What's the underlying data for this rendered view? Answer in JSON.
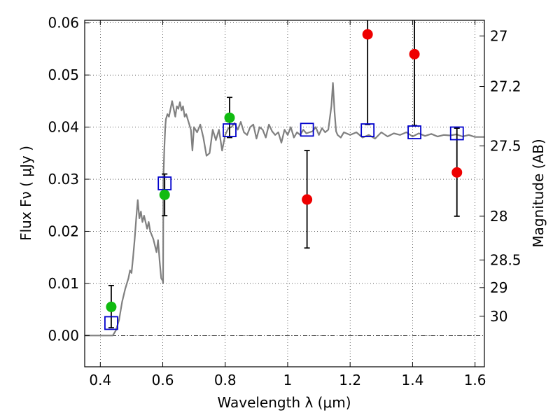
{
  "chart_data": {
    "type": "scatter",
    "xlabel": "Wavelength  λ (μm)",
    "ylabel_left": "Flux  Fν  ( μJy )",
    "ylabel_right": "Magnitude (AB)",
    "xlim": [
      0.35,
      1.63
    ],
    "ylim": [
      -0.006,
      0.0605
    ],
    "grid": true,
    "x_ticks": [
      0.4,
      0.6,
      0.8,
      1.0,
      1.2,
      1.4,
      1.6
    ],
    "x_tick_labels": [
      "0.4",
      "0.6",
      "0.8",
      "1",
      "1.2",
      "1.4",
      "1.6"
    ],
    "y_ticks": [
      0.0,
      0.01,
      0.02,
      0.03,
      0.04,
      0.05,
      0.06
    ],
    "y_tick_labels": [
      "0.00",
      "0.01",
      "0.02",
      "0.03",
      "0.04",
      "0.05",
      "0.06"
    ],
    "right_ticks": [
      {
        "label": "27",
        "flux": 0.0575
      },
      {
        "label": "27.2",
        "flux": 0.0478
      },
      {
        "label": "27.5",
        "flux": 0.0364
      },
      {
        "label": "28",
        "flux": 0.0229
      },
      {
        "label": "28.5",
        "flux": 0.0145
      },
      {
        "label": "29",
        "flux": 0.0092
      },
      {
        "label": "30",
        "flux": 0.0037
      }
    ],
    "series": [
      {
        "marker": "square-open",
        "color": "#0000cc",
        "points": [
          {
            "x": 0.435,
            "y": 0.0024
          },
          {
            "x": 0.606,
            "y": 0.0292
          },
          {
            "x": 0.814,
            "y": 0.0394
          },
          {
            "x": 1.062,
            "y": 0.0395
          },
          {
            "x": 1.256,
            "y": 0.0394
          },
          {
            "x": 1.406,
            "y": 0.039
          },
          {
            "x": 1.542,
            "y": 0.0388
          }
        ]
      },
      {
        "marker": "circle",
        "color": "#11bb11",
        "points": [
          {
            "x": 0.435,
            "y": 0.0055,
            "lo": 0.0015,
            "hi": 0.0096
          },
          {
            "x": 0.606,
            "y": 0.027,
            "lo": 0.023,
            "hi": 0.031
          },
          {
            "x": 0.814,
            "y": 0.0418,
            "lo": 0.038,
            "hi": 0.0457
          }
        ]
      },
      {
        "marker": "circle",
        "color": "#ee0000",
        "points": [
          {
            "x": 1.062,
            "y": 0.0261,
            "lo": 0.0168,
            "hi": 0.0355
          },
          {
            "x": 1.256,
            "y": 0.0578,
            "lo": 0.0405,
            "hi": 0.0615
          },
          {
            "x": 1.406,
            "y": 0.054,
            "lo": 0.0403,
            "hi": 0.0615
          },
          {
            "x": 1.542,
            "y": 0.0313,
            "lo": 0.0229,
            "hi": 0.0398
          }
        ]
      }
    ],
    "spectrum": {
      "color": "#808080",
      "x": [
        0.35,
        0.4,
        0.44,
        0.45,
        0.46,
        0.47,
        0.48,
        0.49,
        0.495,
        0.5,
        0.505,
        0.51,
        0.515,
        0.52,
        0.525,
        0.53,
        0.535,
        0.54,
        0.55,
        0.555,
        0.56,
        0.57,
        0.58,
        0.585,
        0.59,
        0.595,
        0.6,
        0.601,
        0.602,
        0.605,
        0.608,
        0.61,
        0.615,
        0.62,
        0.63,
        0.64,
        0.645,
        0.65,
        0.655,
        0.66,
        0.665,
        0.67,
        0.675,
        0.68,
        0.69,
        0.695,
        0.7,
        0.71,
        0.72,
        0.73,
        0.74,
        0.75,
        0.76,
        0.77,
        0.78,
        0.79,
        0.8,
        0.81,
        0.82,
        0.83,
        0.84,
        0.85,
        0.86,
        0.87,
        0.88,
        0.89,
        0.9,
        0.91,
        0.92,
        0.93,
        0.94,
        0.95,
        0.96,
        0.97,
        0.98,
        0.99,
        1.0,
        1.01,
        1.02,
        1.03,
        1.04,
        1.05,
        1.06,
        1.07,
        1.08,
        1.09,
        1.1,
        1.11,
        1.12,
        1.13,
        1.14,
        1.145,
        1.15,
        1.155,
        1.16,
        1.17,
        1.18,
        1.2,
        1.22,
        1.24,
        1.26,
        1.28,
        1.3,
        1.32,
        1.34,
        1.36,
        1.38,
        1.4,
        1.42,
        1.44,
        1.46,
        1.48,
        1.5,
        1.52,
        1.54,
        1.56,
        1.58,
        1.6,
        1.63
      ],
      "y": [
        0.0,
        0.0,
        0.0,
        0.001,
        0.003,
        0.0065,
        0.009,
        0.011,
        0.0125,
        0.012,
        0.015,
        0.0185,
        0.0225,
        0.026,
        0.0225,
        0.0238,
        0.0218,
        0.023,
        0.0205,
        0.0218,
        0.02,
        0.0185,
        0.016,
        0.0183,
        0.0142,
        0.011,
        0.0105,
        0.01,
        0.03,
        0.036,
        0.04,
        0.0415,
        0.0425,
        0.042,
        0.045,
        0.042,
        0.044,
        0.0435,
        0.0448,
        0.0432,
        0.044,
        0.042,
        0.0425,
        0.0415,
        0.0395,
        0.0355,
        0.04,
        0.039,
        0.0405,
        0.038,
        0.0345,
        0.035,
        0.0395,
        0.0375,
        0.0395,
        0.0355,
        0.0385,
        0.0398,
        0.04,
        0.0408,
        0.0395,
        0.041,
        0.039,
        0.0385,
        0.04,
        0.0405,
        0.0378,
        0.04,
        0.0395,
        0.038,
        0.0405,
        0.0392,
        0.0385,
        0.039,
        0.037,
        0.0395,
        0.0385,
        0.04,
        0.038,
        0.039,
        0.0385,
        0.0395,
        0.0388,
        0.039,
        0.0392,
        0.04,
        0.0385,
        0.0398,
        0.039,
        0.0395,
        0.044,
        0.0485,
        0.043,
        0.0392,
        0.0385,
        0.038,
        0.039,
        0.0385,
        0.039,
        0.038,
        0.0385,
        0.0378,
        0.039,
        0.0382,
        0.0388,
        0.0385,
        0.039,
        0.0382,
        0.0388,
        0.0383,
        0.0387,
        0.0382,
        0.0385,
        0.0384,
        0.0386,
        0.0382,
        0.0385,
        0.0381,
        0.0381
      ]
    }
  }
}
